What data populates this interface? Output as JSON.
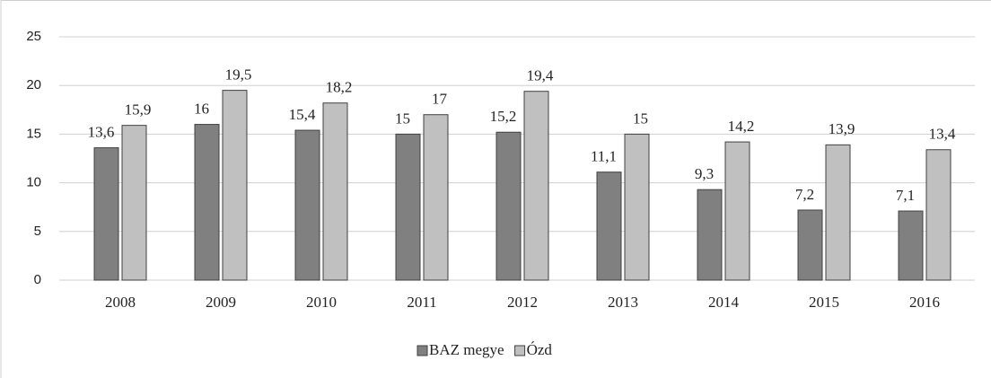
{
  "chart_data": {
    "type": "bar",
    "categories": [
      "2008",
      "2009",
      "2010",
      "2011",
      "2012",
      "2013",
      "2014",
      "2015",
      "2016"
    ],
    "series": [
      {
        "name": "BAZ megye",
        "color": "#808080",
        "values": [
          13.6,
          16,
          15.4,
          15,
          15.2,
          11.1,
          9.3,
          7.2,
          7.1
        ],
        "value_labels": [
          "13,6",
          "16",
          "15,4",
          "15",
          "15,2",
          "11,1",
          "9,3",
          "7,2",
          "7,1"
        ]
      },
      {
        "name": "Ózd",
        "color": "#c0c0c0",
        "values": [
          15.9,
          19.5,
          18.2,
          17,
          19.4,
          15,
          14.2,
          13.9,
          13.4
        ],
        "value_labels": [
          "15,9",
          "19,5",
          "18,2",
          "17",
          "19,4",
          "15",
          "14,2",
          "13,9",
          "13,4"
        ]
      }
    ],
    "ylim": [
      0,
      25
    ],
    "yticks": [
      0,
      5,
      10,
      15,
      20,
      25
    ],
    "grid": true,
    "legend": "bottom"
  }
}
